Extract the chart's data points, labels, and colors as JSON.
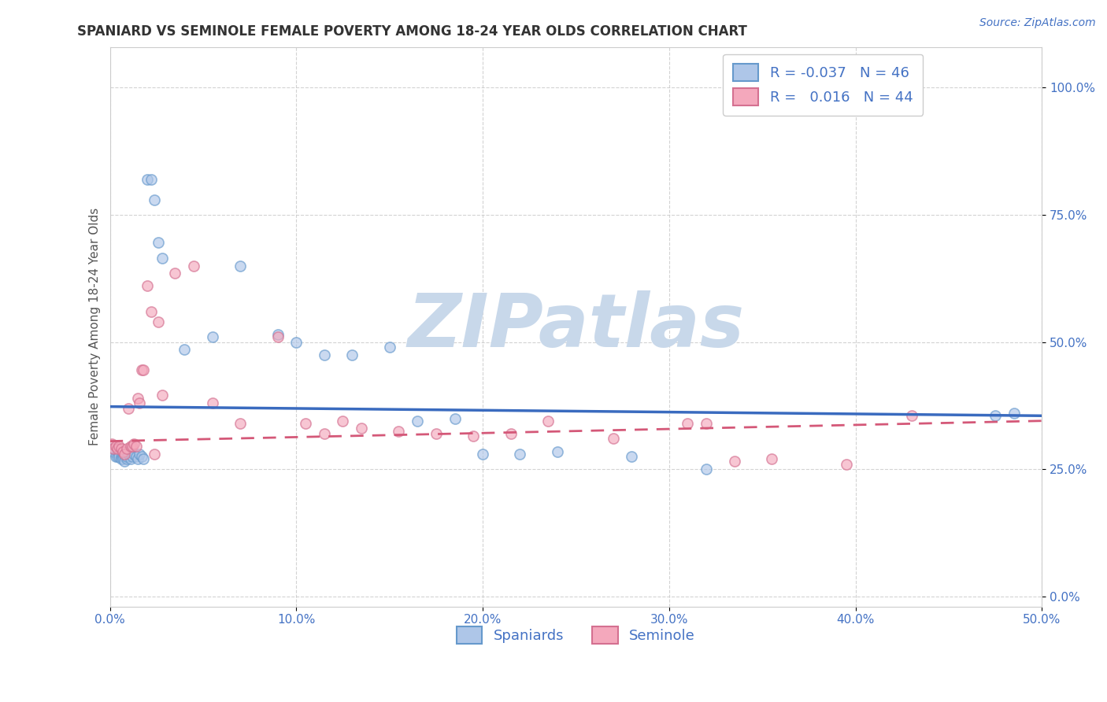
{
  "title": "SPANIARD VS SEMINOLE FEMALE POVERTY AMONG 18-24 YEAR OLDS CORRELATION CHART",
  "source": "Source: ZipAtlas.com",
  "ylabel": "Female Poverty Among 18-24 Year Olds",
  "xlim": [
    0.0,
    0.5
  ],
  "ylim": [
    -0.02,
    1.08
  ],
  "xticks": [
    0.0,
    0.1,
    0.2,
    0.3,
    0.4,
    0.5
  ],
  "xticklabels": [
    "0.0%",
    "10.0%",
    "20.0%",
    "30.0%",
    "40.0%",
    "50.0%"
  ],
  "yticks": [
    0.0,
    0.25,
    0.5,
    0.75,
    1.0
  ],
  "yticklabels": [
    "0.0%",
    "25.0%",
    "50.0%",
    "75.0%",
    "100.0%"
  ],
  "legend_labels": [
    "Spaniards",
    "Seminole"
  ],
  "legend_R": [
    "-0.037",
    "0.016"
  ],
  "legend_N": [
    "46",
    "44"
  ],
  "spaniard_color": "#aec6e8",
  "seminole_color": "#f4a8bc",
  "spaniard_edge_color": "#6699cc",
  "seminole_edge_color": "#d47090",
  "spaniard_line_color": "#3a6bbf",
  "seminole_line_color": "#d45878",
  "watermark": "ZIPatlas",
  "watermark_color": "#c8d8ea",
  "grid_color": "#c8c8c8",
  "title_fontsize": 12,
  "axis_fontsize": 11,
  "tick_fontsize": 11,
  "marker_size": 90,
  "marker_alpha": 0.65,
  "marker_linewidth": 1.2,
  "spaniard_x": [
    0.001,
    0.002,
    0.003,
    0.004,
    0.005,
    0.005,
    0.006,
    0.006,
    0.007,
    0.007,
    0.008,
    0.008,
    0.009,
    0.009,
    0.01,
    0.01,
    0.011,
    0.012,
    0.013,
    0.014,
    0.015,
    0.016,
    0.017,
    0.018,
    0.02,
    0.022,
    0.024,
    0.026,
    0.028,
    0.04,
    0.055,
    0.07,
    0.09,
    0.1,
    0.115,
    0.13,
    0.15,
    0.165,
    0.185,
    0.2,
    0.22,
    0.24,
    0.28,
    0.32,
    0.475,
    0.485
  ],
  "spaniard_y": [
    0.29,
    0.285,
    0.275,
    0.275,
    0.28,
    0.275,
    0.275,
    0.27,
    0.275,
    0.27,
    0.275,
    0.265,
    0.27,
    0.275,
    0.285,
    0.28,
    0.27,
    0.275,
    0.28,
    0.275,
    0.27,
    0.28,
    0.275,
    0.27,
    0.82,
    0.82,
    0.78,
    0.695,
    0.665,
    0.485,
    0.51,
    0.65,
    0.515,
    0.5,
    0.475,
    0.475,
    0.49,
    0.345,
    0.35,
    0.28,
    0.28,
    0.285,
    0.275,
    0.25,
    0.355,
    0.36
  ],
  "seminole_x": [
    0.001,
    0.002,
    0.003,
    0.004,
    0.005,
    0.006,
    0.007,
    0.008,
    0.009,
    0.01,
    0.011,
    0.012,
    0.013,
    0.014,
    0.015,
    0.016,
    0.017,
    0.018,
    0.02,
    0.022,
    0.024,
    0.026,
    0.028,
    0.035,
    0.045,
    0.055,
    0.07,
    0.09,
    0.105,
    0.115,
    0.125,
    0.135,
    0.155,
    0.175,
    0.195,
    0.215,
    0.235,
    0.27,
    0.31,
    0.32,
    0.335,
    0.355,
    0.395,
    0.43
  ],
  "seminole_y": [
    0.3,
    0.29,
    0.295,
    0.29,
    0.295,
    0.29,
    0.285,
    0.28,
    0.29,
    0.37,
    0.295,
    0.295,
    0.3,
    0.295,
    0.39,
    0.38,
    0.445,
    0.445,
    0.61,
    0.56,
    0.28,
    0.54,
    0.395,
    0.635,
    0.65,
    0.38,
    0.34,
    0.51,
    0.34,
    0.32,
    0.345,
    0.33,
    0.325,
    0.32,
    0.315,
    0.32,
    0.345,
    0.31,
    0.34,
    0.34,
    0.265,
    0.27,
    0.26,
    0.355
  ]
}
